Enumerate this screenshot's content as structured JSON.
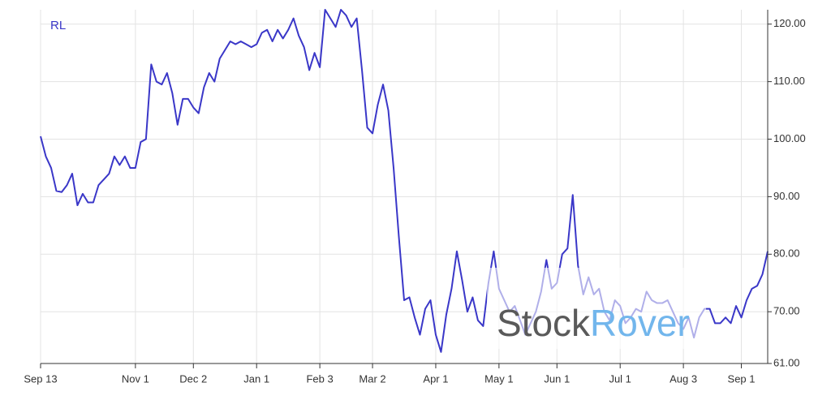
{
  "chart_data": {
    "type": "line",
    "categories": [
      "Sep 13",
      null,
      null,
      null,
      null,
      null,
      null,
      null,
      null,
      null,
      null,
      null,
      null,
      null,
      null,
      null,
      null,
      null,
      "Nov 1",
      null,
      null,
      null,
      null,
      null,
      null,
      null,
      null,
      null,
      null,
      "Dec 2",
      null,
      null,
      null,
      null,
      null,
      null,
      null,
      null,
      null,
      null,
      null,
      "Jan 1",
      null,
      null,
      null,
      null,
      null,
      null,
      null,
      null,
      null,
      null,
      null,
      "Feb 3",
      null,
      null,
      null,
      null,
      null,
      null,
      null,
      null,
      null,
      "Mar 2",
      null,
      null,
      null,
      null,
      null,
      null,
      null,
      null,
      null,
      null,
      null,
      "Apr 1",
      null,
      null,
      null,
      null,
      null,
      null,
      null,
      null,
      null,
      null,
      null,
      "May 1",
      null,
      null,
      null,
      null,
      null,
      null,
      null,
      null,
      null,
      null,
      "Jun 1",
      null,
      null,
      null,
      null,
      null,
      null,
      null,
      null,
      null,
      null,
      null,
      "Jul 1",
      null,
      null,
      null,
      null,
      null,
      null,
      null,
      null,
      null,
      null,
      null,
      "Aug 3",
      null,
      null,
      null,
      null,
      null,
      null,
      null,
      null,
      null,
      null,
      "Sep 1",
      null,
      null,
      null,
      null,
      null
    ],
    "series": [
      {
        "name": "RL",
        "color": "#3a37c8",
        "values": [
          100.5,
          97,
          95,
          91,
          90.8,
          92,
          94,
          88.5,
          90.5,
          89,
          89,
          92,
          93,
          94,
          97,
          95.5,
          97,
          95,
          95,
          99.5,
          100,
          113,
          110,
          109.5,
          111.5,
          108,
          102.5,
          107,
          107,
          105.5,
          104.5,
          109,
          111.5,
          110,
          114,
          115.5,
          117,
          116.5,
          117,
          116.5,
          116,
          116.5,
          118.5,
          119,
          117,
          119,
          117.5,
          119,
          121,
          118,
          116,
          112,
          115,
          112.5,
          122.5,
          121,
          119.5,
          122.5,
          121.5,
          119.5,
          121,
          112,
          102,
          101,
          106,
          109.5,
          105,
          95,
          83,
          72,
          72.5,
          69,
          66,
          70.5,
          72,
          66,
          63,
          69.5,
          74,
          80.5,
          75.5,
          70,
          72.5,
          68.5,
          67.5,
          75,
          80.5,
          74,
          72,
          70,
          71,
          68.5,
          66,
          68,
          70,
          73.5,
          79,
          74,
          75,
          80,
          81,
          90.3,
          78,
          73,
          76,
          73,
          74,
          70,
          68.5,
          72,
          71,
          68,
          69,
          70.5,
          70,
          73.5,
          72,
          71.5,
          71.5,
          72,
          70,
          68,
          67,
          69,
          65.5,
          69,
          70.5,
          70.5,
          68,
          68,
          69,
          68,
          71,
          69,
          72,
          74,
          74.5,
          76.5,
          80.5
        ]
      }
    ],
    "ylim": [
      61,
      122.5
    ],
    "yticks": [
      {
        "value": 61,
        "label": "61.00"
      },
      {
        "value": 70,
        "label": "70.00"
      },
      {
        "value": 80,
        "label": "80.00"
      },
      {
        "value": 90,
        "label": "90.00"
      },
      {
        "value": 100,
        "label": "100.00"
      },
      {
        "value": 110,
        "label": "110.00"
      },
      {
        "value": 120,
        "label": "120.00"
      }
    ],
    "grid": true,
    "watermark": [
      "Stock",
      "Rover"
    ]
  }
}
